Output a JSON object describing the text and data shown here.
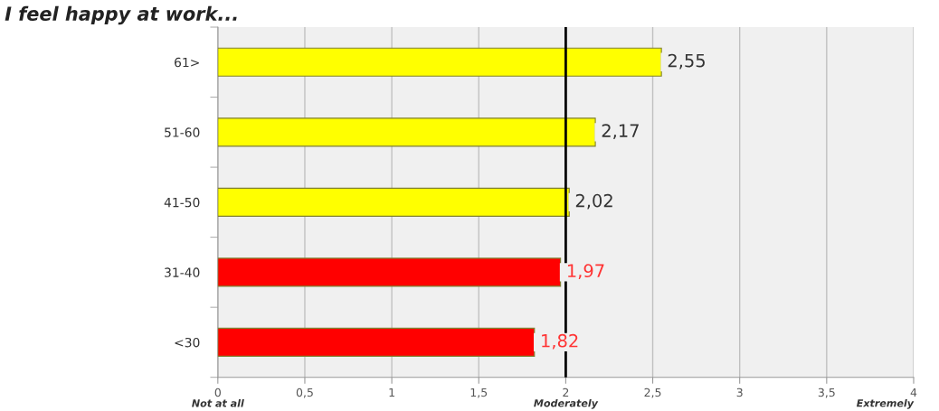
{
  "chart_data": {
    "type": "bar",
    "orientation": "horizontal",
    "title": "I feel happy at work...",
    "categories": [
      "61>",
      "51-60",
      "41-50",
      "31-40",
      "<30"
    ],
    "values": [
      2.55,
      2.17,
      2.02,
      1.97,
      1.82
    ],
    "colors": [
      "#ffff00",
      "#ffff00",
      "#ffff00",
      "#ff0000",
      "#ff0000"
    ],
    "value_labels": [
      "2,55",
      "2,17",
      "2,02",
      "1,97",
      "1,82"
    ],
    "xlim": [
      0,
      4
    ],
    "xticks": [
      0,
      {
        "value": 0.5,
        "label": "0,5"
      },
      1,
      {
        "value": 1.5,
        "label": "1,5"
      },
      2,
      {
        "value": 2.5,
        "label": "2,5"
      },
      3,
      {
        "value": 3.5,
        "label": "3,5"
      },
      4
    ],
    "grid": "x",
    "ref_lines": [
      {
        "axis": "x",
        "value": 2,
        "color": "#000000",
        "line_style": "solid"
      }
    ],
    "annotations": [
      "Not at all",
      "Moderately",
      "Extremely"
    ]
  }
}
